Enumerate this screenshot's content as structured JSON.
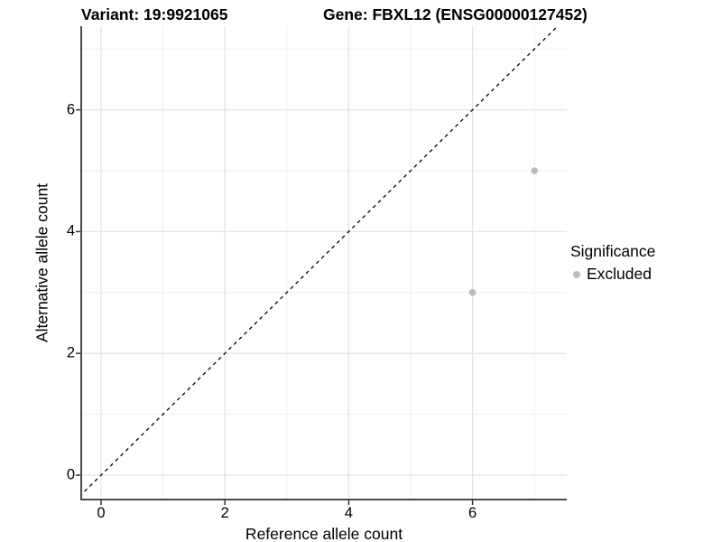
{
  "titles": {
    "variant": "Variant: 19:9921065",
    "gene": "Gene: FBXL12 (ENSG00000127452)"
  },
  "chart_data": {
    "type": "scatter",
    "title_left": "Variant: 19:9921065",
    "title_right": "Gene: FBXL12 (ENSG00000127452)",
    "xlabel": "Reference allele count",
    "ylabel": "Alternative allele count",
    "xlim": [
      -0.35,
      7.5
    ],
    "ylim": [
      -0.4,
      7.35
    ],
    "x_ticks": [
      0,
      2,
      4,
      6
    ],
    "y_ticks": [
      0,
      2,
      4,
      6
    ],
    "minor_gridlines": [
      1,
      3,
      5,
      7
    ],
    "grid": true,
    "panel_background": "#ffffff",
    "major_grid_color": "#e4e4e4",
    "minor_grid_color": "#efefef",
    "axis_line_color": "#4a4a4a",
    "identity_line": {
      "equation": "y = x",
      "style": "dashed",
      "color": "#000000"
    },
    "series": [
      {
        "name": "Excluded",
        "color": "#bcbcbc",
        "points": [
          {
            "x": 6,
            "y": 3
          },
          {
            "x": 7,
            "y": 5
          }
        ]
      }
    ],
    "legend": {
      "position": "right",
      "title": "Significance",
      "items": [
        {
          "label": "Excluded",
          "color": "#bcbcbc"
        }
      ]
    }
  }
}
